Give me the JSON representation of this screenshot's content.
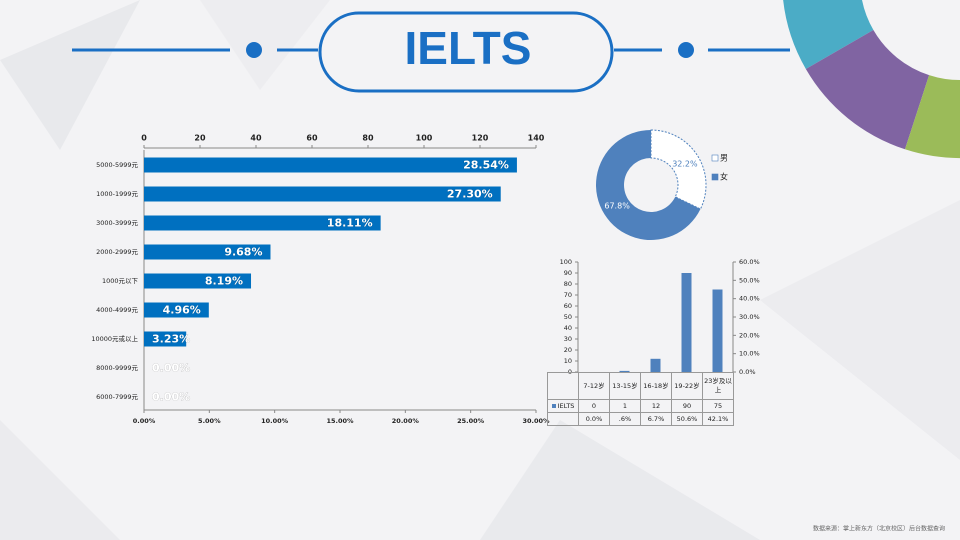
{
  "title": "IELTS",
  "source": "数据来源：掌上新东方（北京校区）后台数据查询",
  "chart_data": [
    {
      "type": "hbar",
      "categories": [
        "5000-5999元",
        "1000-1999元",
        "3000-3999元",
        "2000-2999元",
        "1000元以下",
        "4000-4999元",
        "10000元或以上",
        "8000-9999元",
        "6000-7999元"
      ],
      "values": [
        28.54,
        27.3,
        18.11,
        9.68,
        8.19,
        4.96,
        3.23,
        0,
        0
      ],
      "value_labels": [
        "28.54%",
        "27.30%",
        "18.11%",
        "9.68%",
        "8.19%",
        "4.96%",
        "3.23%",
        "0.00%",
        "0.00%"
      ],
      "color": "#0070c0",
      "xlim": [
        0,
        30
      ],
      "xticks": [
        {
          "value": 0,
          "label": "0.00%"
        },
        {
          "value": 5,
          "label": "5.00%"
        },
        {
          "value": 10,
          "label": "10.00%"
        },
        {
          "value": 15,
          "label": "15.00%"
        },
        {
          "value": 20,
          "label": "20.00%"
        },
        {
          "value": 25,
          "label": "25.00%"
        },
        {
          "value": 30,
          "label": "30.00%"
        }
      ],
      "x2lim": [
        0,
        140
      ],
      "x2ticks": [
        0,
        20,
        40,
        60,
        80,
        100,
        120,
        140
      ]
    },
    {
      "type": "donut",
      "categories": [
        "男",
        "女"
      ],
      "values": [
        32.2,
        67.8
      ],
      "value_labels": [
        "32.2%",
        "67.8%"
      ],
      "colors": [
        "#ffffff",
        "#4f81bd"
      ]
    },
    {
      "type": "bar",
      "categories": [
        "7-12岁",
        "13-15岁",
        "16-18岁",
        "19-22岁",
        "23岁及以上"
      ],
      "series": [
        {
          "name": "IELTS",
          "color": "#4f81bd",
          "values": [
            0,
            1,
            12,
            90,
            75
          ]
        },
        {
          "values": [
            0,
            0.6,
            6.7,
            50.6,
            42.1
          ],
          "value_labels": [
            "0.0%",
            ".6%",
            "6.7%",
            "50.6%",
            "42.1%"
          ],
          "axis": "y2"
        }
      ],
      "ylim": [
        0,
        100
      ],
      "yticks": [
        0,
        10,
        20,
        30,
        40,
        50,
        60,
        70,
        80,
        90,
        100
      ],
      "y2lim": [
        0,
        60
      ],
      "y2ticks": [
        {
          "value": 0,
          "label": "0.0%"
        },
        {
          "value": 10,
          "label": "10.0%"
        },
        {
          "value": 20,
          "label": "20.0%"
        },
        {
          "value": 30,
          "label": "30.0%"
        },
        {
          "value": 40,
          "label": "40.0%"
        },
        {
          "value": 50,
          "label": "50.0%"
        },
        {
          "value": 60,
          "label": "60.0%"
        }
      ],
      "data_table": true
    }
  ]
}
